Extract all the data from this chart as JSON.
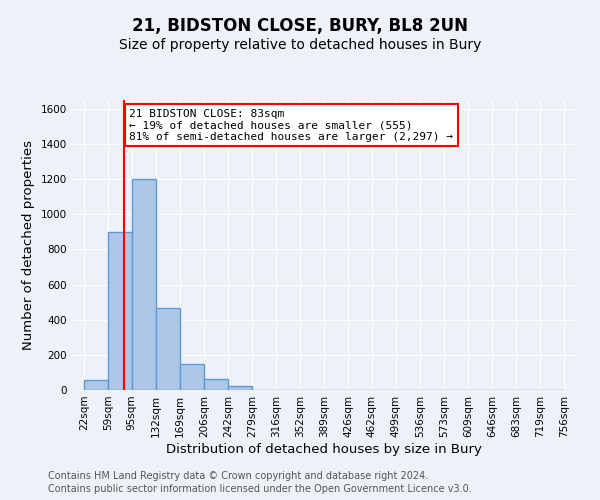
{
  "title": "21, BIDSTON CLOSE, BURY, BL8 2UN",
  "subtitle": "Size of property relative to detached houses in Bury",
  "xlabel": "Distribution of detached houses by size in Bury",
  "ylabel": "Number of detached properties",
  "bin_edges": [
    22,
    59,
    95,
    132,
    169,
    206,
    242,
    279,
    316,
    352,
    389,
    426,
    462,
    499,
    536,
    573,
    609,
    646,
    683,
    719,
    756
  ],
  "counts": [
    55,
    900,
    1200,
    465,
    150,
    60,
    25,
    0,
    0,
    0,
    0,
    0,
    0,
    0,
    0,
    0,
    0,
    0,
    0,
    0
  ],
  "bar_color": "#aec6e8",
  "bar_edge_color": "#5b9bd5",
  "bar_linewidth": 1.0,
  "vline_x": 83,
  "vline_color": "red",
  "vline_linewidth": 1.5,
  "annotation_text": "21 BIDSTON CLOSE: 83sqm\n← 19% of detached houses are smaller (555)\n81% of semi-detached houses are larger (2,297) →",
  "annotation_box_color": "white",
  "annotation_box_edge_color": "red",
  "ylim": [
    0,
    1650
  ],
  "yticks": [
    0,
    200,
    400,
    600,
    800,
    1000,
    1200,
    1400,
    1600
  ],
  "tick_labels": [
    "22sqm",
    "59sqm",
    "95sqm",
    "132sqm",
    "169sqm",
    "206sqm",
    "242sqm",
    "279sqm",
    "316sqm",
    "352sqm",
    "389sqm",
    "426sqm",
    "462sqm",
    "499sqm",
    "536sqm",
    "573sqm",
    "609sqm",
    "646sqm",
    "683sqm",
    "719sqm",
    "756sqm"
  ],
  "footer_line1": "Contains HM Land Registry data © Crown copyright and database right 2024.",
  "footer_line2": "Contains public sector information licensed under the Open Government Licence v3.0.",
  "background_color": "#eef2f8",
  "plot_background_color": "#eef2f8",
  "grid_color": "#ffffff",
  "title_fontsize": 12,
  "subtitle_fontsize": 10,
  "axis_label_fontsize": 9.5,
  "tick_fontsize": 7.5,
  "annotation_fontsize": 8,
  "footer_fontsize": 7
}
